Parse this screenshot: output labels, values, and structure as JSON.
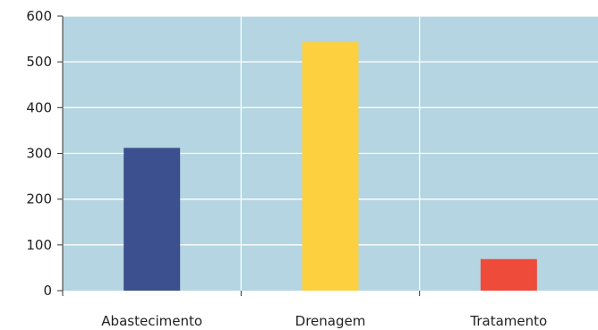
{
  "chart_data": {
    "type": "bar",
    "categories": [
      "Abastecimento",
      "Drenagem",
      "Tratamento"
    ],
    "values": [
      312,
      543,
      69
    ],
    "ylim": [
      0,
      600
    ],
    "yticks": [
      0,
      100,
      200,
      300,
      400,
      500,
      600
    ],
    "grid": true,
    "colors": {
      "plot_background": "#b4d5e1",
      "gridline": "#ffffff",
      "axis": "#333333",
      "bars": [
        "#3c4f8e",
        "#fdd03f",
        "#ef4b3a"
      ]
    }
  }
}
